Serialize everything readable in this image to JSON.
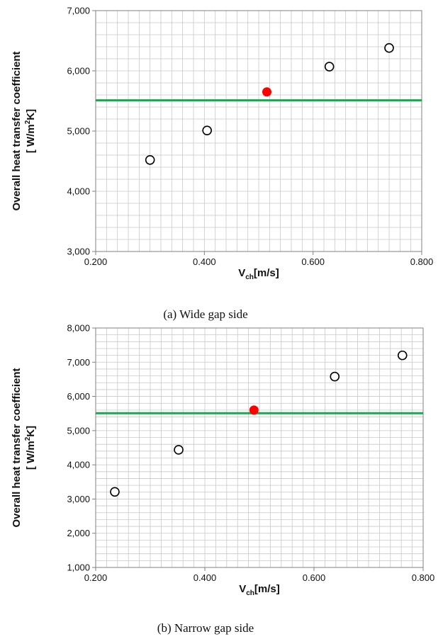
{
  "chart_data": [
    {
      "type": "scatter",
      "caption": "(a)  Wide  gap  side",
      "xlabel": {
        "main": "V",
        "sub": "ch",
        "unit": "[m/s]"
      },
      "ylabel": {
        "line1": "Overall heat transfer coefficient",
        "line2": "[ W/m",
        "sup": "2",
        "line2_end": "K]"
      },
      "xlim": [
        0.2,
        0.8
      ],
      "ylim": [
        3000,
        7000
      ],
      "x_ticks": [
        0.2,
        0.4,
        0.6,
        0.8
      ],
      "x_tick_labels": [
        "0.200",
        "0.400",
        "0.600",
        "0.800"
      ],
      "y_ticks": [
        3000,
        4000,
        5000,
        6000,
        7000
      ],
      "y_tick_labels": [
        "3,000",
        "4,000",
        "5,000",
        "6,000",
        "7,000"
      ],
      "x_minor_step": 0.02,
      "y_minor_step": 200,
      "grid": true,
      "series": [
        {
          "marker": "open-circle",
          "color": "#000000",
          "points": [
            {
              "x": 0.3,
              "y": 4520
            },
            {
              "x": 0.405,
              "y": 5010
            },
            {
              "x": 0.63,
              "y": 6070
            },
            {
              "x": 0.74,
              "y": 6380
            }
          ]
        },
        {
          "marker": "filled-circle",
          "color": "#ff0000",
          "points": [
            {
              "x": 0.515,
              "y": 5650
            }
          ]
        }
      ],
      "reference_line": {
        "y": 5510,
        "color": "#22a350"
      }
    },
    {
      "type": "scatter",
      "caption": "(b)  Narrow  gap  side",
      "xlabel": {
        "main": "V",
        "sub": "ch",
        "unit": "[m/s]"
      },
      "ylabel": {
        "line1": "Overall heat transfer coefficient",
        "line2": "[ W/m",
        "sup": "2",
        "line2_end": "K]"
      },
      "xlim": [
        0.2,
        0.8
      ],
      "ylim": [
        1000,
        8000
      ],
      "x_ticks": [
        0.2,
        0.4,
        0.6,
        0.8
      ],
      "x_tick_labels": [
        "0.200",
        "0.400",
        "0.600",
        "0.800"
      ],
      "y_ticks": [
        1000,
        2000,
        3000,
        4000,
        5000,
        6000,
        7000,
        8000
      ],
      "y_tick_labels": [
        "1,000",
        "2,000",
        "3,000",
        "4,000",
        "5,000",
        "6,000",
        "7,000",
        "8,000"
      ],
      "x_minor_step": 0.02,
      "y_minor_step": 200,
      "grid": true,
      "series": [
        {
          "marker": "open-circle",
          "color": "#000000",
          "points": [
            {
              "x": 0.235,
              "y": 3210
            },
            {
              "x": 0.352,
              "y": 4440
            },
            {
              "x": 0.638,
              "y": 6580
            },
            {
              "x": 0.762,
              "y": 7200
            }
          ]
        },
        {
          "marker": "filled-circle",
          "color": "#ff0000",
          "points": [
            {
              "x": 0.49,
              "y": 5600
            }
          ]
        }
      ],
      "reference_line": {
        "y": 5510,
        "color": "#22a350"
      }
    }
  ]
}
